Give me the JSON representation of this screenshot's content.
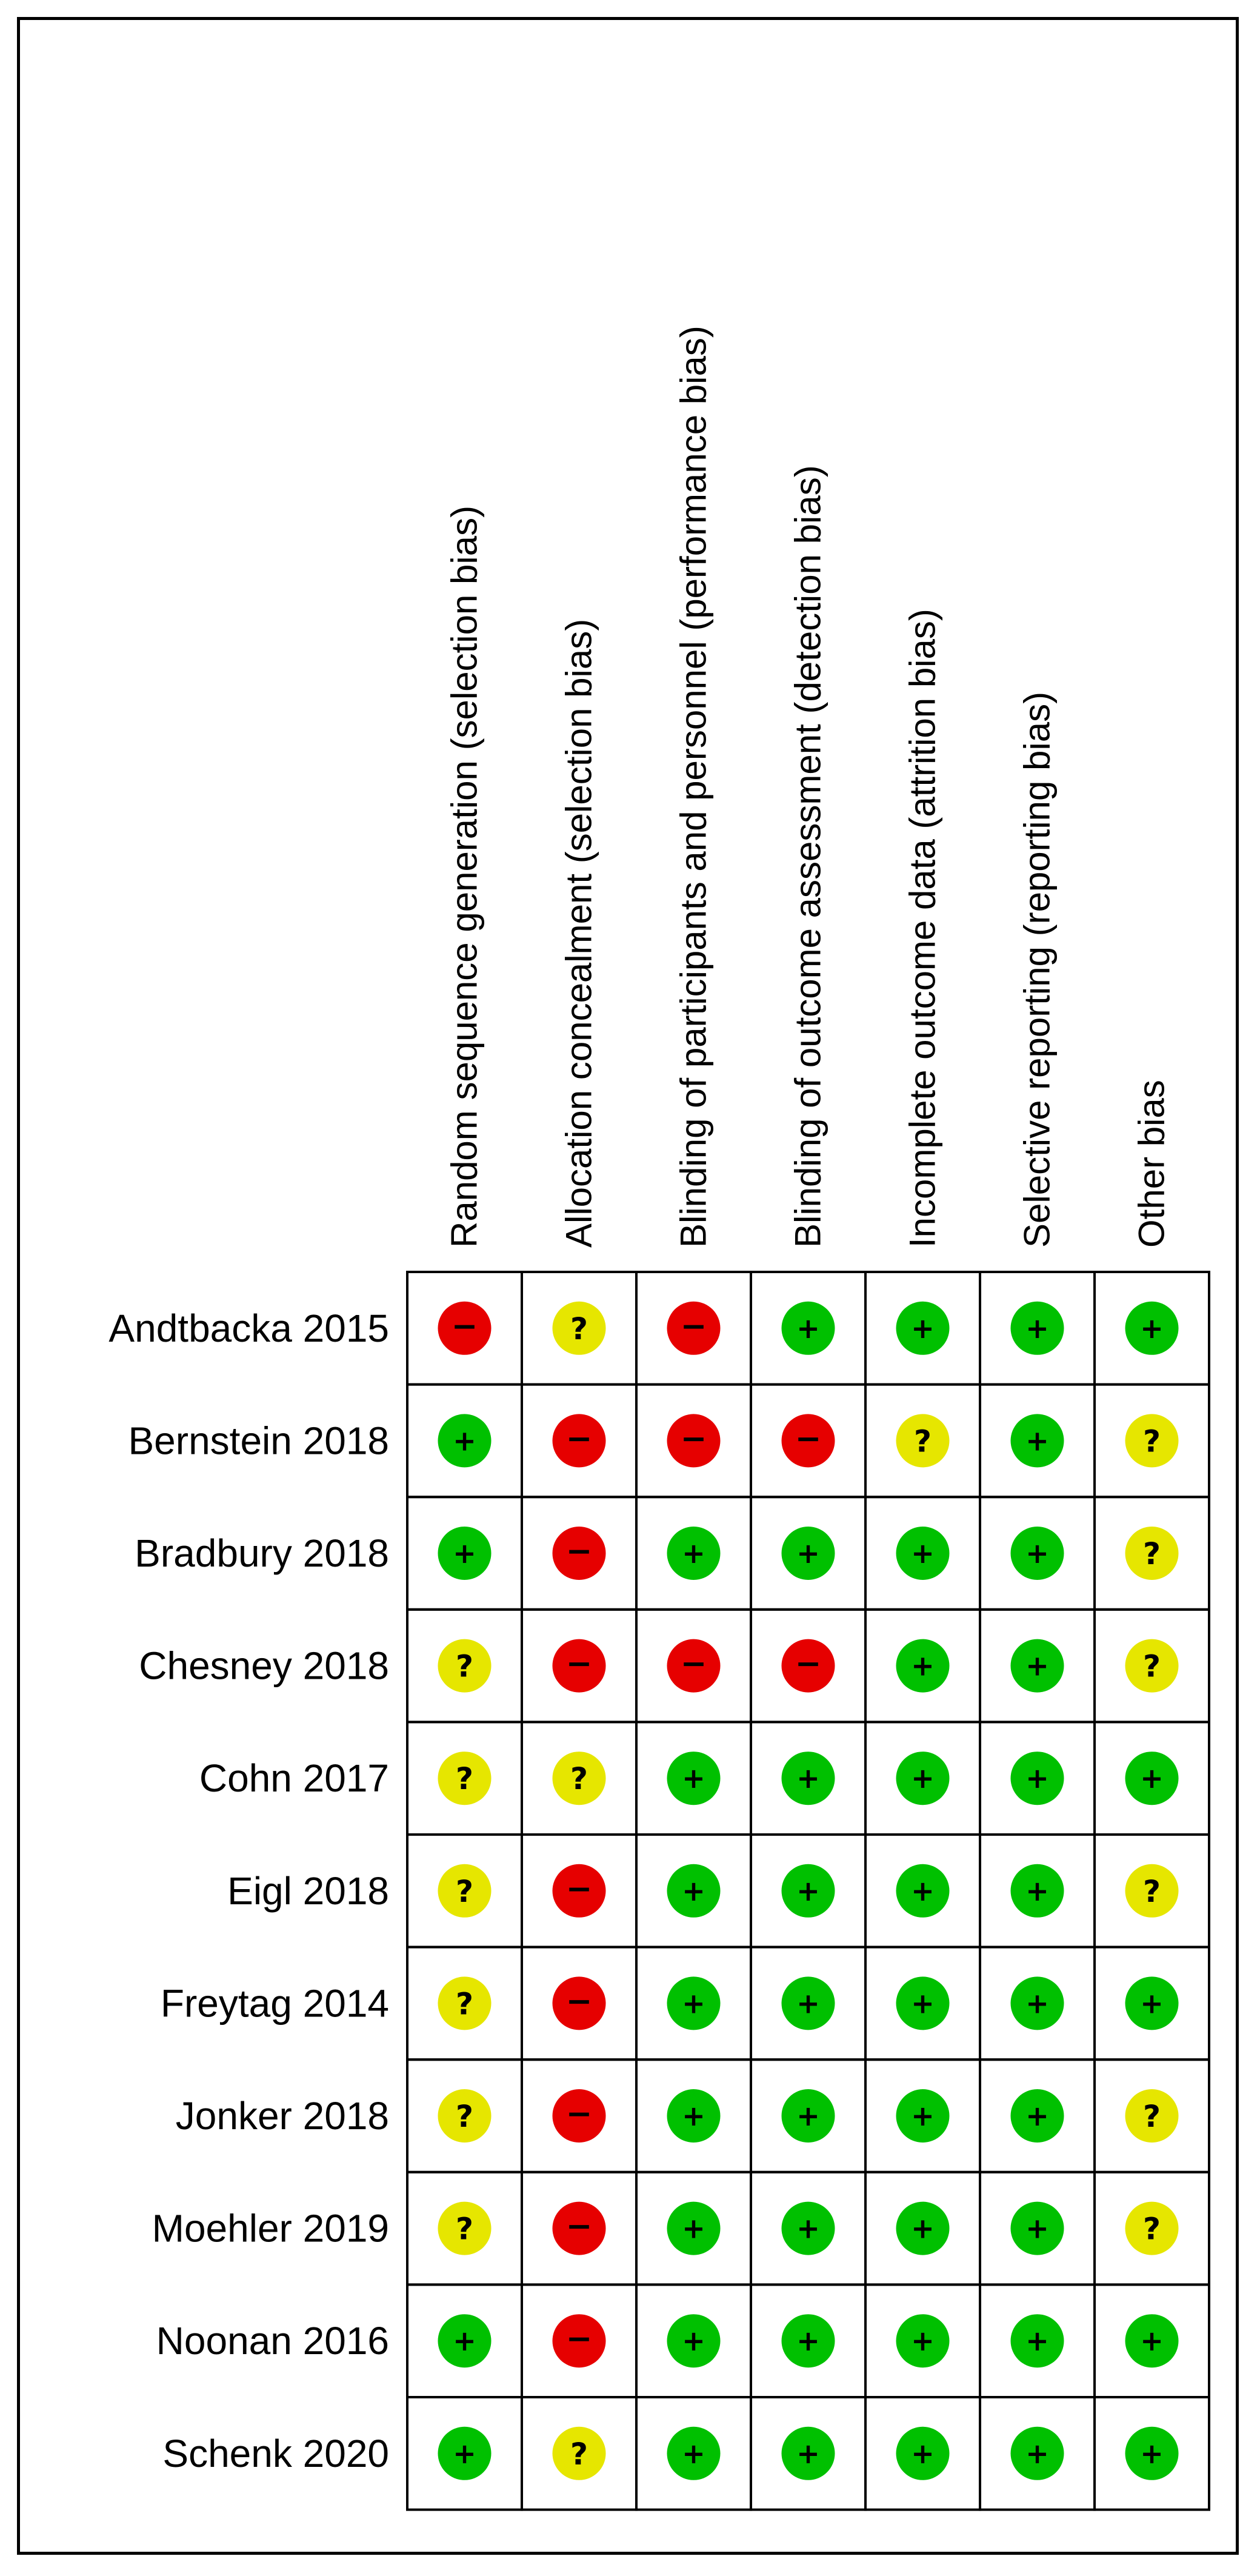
{
  "chart_data": {
    "type": "table",
    "columns": [
      "Random sequence generation (selection bias)",
      "Allocation concealment (selection bias)",
      "Blinding of participants and personnel (performance bias)",
      "Blinding of outcome assessment (detection bias)",
      "Incomplete outcome data (attrition bias)",
      "Selective reporting (reporting bias)",
      "Other bias"
    ],
    "rows": [
      {
        "study": "Andtbacka 2015",
        "ratings": [
          "high",
          "unclear",
          "high",
          "low",
          "low",
          "low",
          "low"
        ]
      },
      {
        "study": "Bernstein 2018",
        "ratings": [
          "low",
          "high",
          "high",
          "high",
          "unclear",
          "low",
          "unclear"
        ]
      },
      {
        "study": "Bradbury 2018",
        "ratings": [
          "low",
          "high",
          "low",
          "low",
          "low",
          "low",
          "unclear"
        ]
      },
      {
        "study": "Chesney 2018",
        "ratings": [
          "unclear",
          "high",
          "high",
          "high",
          "low",
          "low",
          "unclear"
        ]
      },
      {
        "study": "Cohn 2017",
        "ratings": [
          "unclear",
          "unclear",
          "low",
          "low",
          "low",
          "low",
          "low"
        ]
      },
      {
        "study": "Eigl 2018",
        "ratings": [
          "unclear",
          "high",
          "low",
          "low",
          "low",
          "low",
          "unclear"
        ]
      },
      {
        "study": "Freytag 2014",
        "ratings": [
          "unclear",
          "high",
          "low",
          "low",
          "low",
          "low",
          "low"
        ]
      },
      {
        "study": "Jonker 2018",
        "ratings": [
          "unclear",
          "high",
          "low",
          "low",
          "low",
          "low",
          "unclear"
        ]
      },
      {
        "study": "Moehler 2019",
        "ratings": [
          "unclear",
          "high",
          "low",
          "low",
          "low",
          "low",
          "unclear"
        ]
      },
      {
        "study": "Noonan 2016",
        "ratings": [
          "low",
          "high",
          "low",
          "low",
          "low",
          "low",
          "low"
        ]
      },
      {
        "study": "Schenk 2020",
        "ratings": [
          "low",
          "unclear",
          "low",
          "low",
          "low",
          "low",
          "low"
        ]
      }
    ],
    "rating_styles": {
      "low": {
        "color": "#00c000",
        "symbol": "+"
      },
      "high": {
        "color": "#e60000",
        "symbol": "−"
      },
      "unclear": {
        "color": "#e6e600",
        "symbol": "?"
      }
    }
  }
}
